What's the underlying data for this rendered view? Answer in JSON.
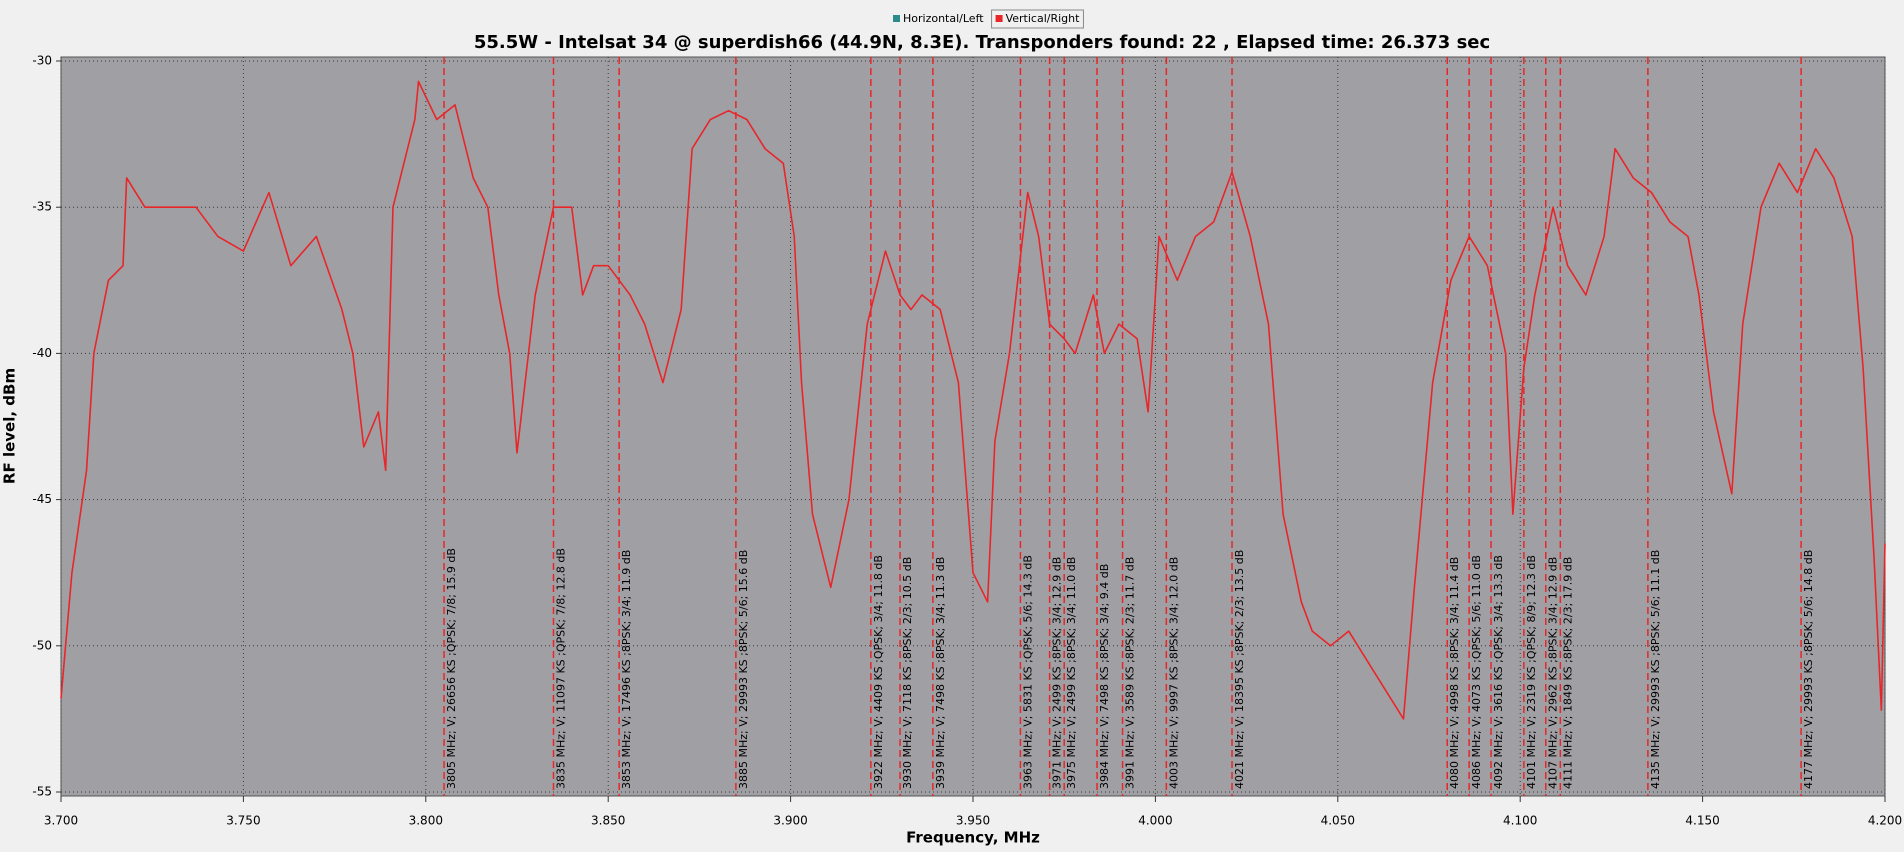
{
  "chart_data": {
    "type": "line",
    "title": "55.5W - Intelsat 34 @ superdish66 (44.9N, 8.3E). Transponders found: 22 , Elapsed time: 26.373 sec",
    "xlabel": "Frequency, MHz",
    "ylabel": "RF level, dBm",
    "xlim": [
      3.7,
      4.2
    ],
    "xticks": [
      {
        "value": 3.7,
        "label": "3.700"
      },
      {
        "value": 3.75,
        "label": "3.750"
      },
      {
        "value": 3.8,
        "label": "3.800"
      },
      {
        "value": 3.85,
        "label": "3.850"
      },
      {
        "value": 3.9,
        "label": "3.900"
      },
      {
        "value": 3.95,
        "label": "3.950"
      },
      {
        "value": 4.0,
        "label": "4.000"
      },
      {
        "value": 4.05,
        "label": "4.050"
      },
      {
        "value": 4.1,
        "label": "4.100"
      },
      {
        "value": 4.15,
        "label": "4.150"
      },
      {
        "value": 4.2,
        "label": "4.200"
      }
    ],
    "ylim": [
      -55,
      -30
    ],
    "yticks": [
      -30,
      -35,
      -40,
      -45,
      -50,
      -55
    ],
    "grid": true,
    "legend": "top",
    "x": [
      3.7,
      3.703,
      3.707,
      3.709,
      3.713,
      3.717,
      3.718,
      3.723,
      3.73,
      3.737,
      3.743,
      3.75,
      3.757,
      3.763,
      3.77,
      3.777,
      3.78,
      3.783,
      3.787,
      3.789,
      3.791,
      3.793,
      3.797,
      3.798,
      3.803,
      3.808,
      3.813,
      3.817,
      3.82,
      3.823,
      3.825,
      3.83,
      3.835,
      3.84,
      3.843,
      3.846,
      3.85,
      3.853,
      3.856,
      3.86,
      3.865,
      3.87,
      3.873,
      3.878,
      3.883,
      3.888,
      3.893,
      3.898,
      3.901,
      3.903,
      3.906,
      3.911,
      3.916,
      3.921,
      3.926,
      3.93,
      3.933,
      3.936,
      3.941,
      3.946,
      3.95,
      3.954,
      3.956,
      3.96,
      3.965,
      3.968,
      3.971,
      3.975,
      3.978,
      3.983,
      3.986,
      3.99,
      3.995,
      3.998,
      4.001,
      4.006,
      4.011,
      4.016,
      4.021,
      4.026,
      4.031,
      4.035,
      4.04,
      4.043,
      4.048,
      4.053,
      4.058,
      4.063,
      4.068,
      4.071,
      4.076,
      4.081,
      4.086,
      4.091,
      4.096,
      4.098,
      4.101,
      4.104,
      4.109,
      4.113,
      4.118,
      4.123,
      4.126,
      4.131,
      4.136,
      4.141,
      4.146,
      4.149,
      4.153,
      4.158,
      4.161,
      4.166,
      4.171,
      4.176,
      4.181,
      4.186,
      4.191,
      4.194,
      4.197,
      4.199,
      4.2
    ],
    "series": [
      {
        "name": "Horizontal/Left",
        "color": "#2e8b8b",
        "values": [
          null,
          null,
          null,
          null,
          null,
          null,
          null,
          null,
          null,
          null,
          null,
          null,
          null,
          null,
          null,
          null,
          null,
          null,
          null,
          null,
          null,
          null,
          null,
          null,
          null,
          null,
          null,
          null,
          null,
          null,
          null,
          null,
          null,
          null,
          null,
          null,
          null,
          null,
          null,
          null,
          null,
          null,
          null,
          null,
          null,
          null,
          null,
          null,
          null,
          null,
          null,
          null,
          null,
          null,
          null,
          null,
          null,
          null,
          null,
          null,
          null,
          null,
          null,
          null,
          null,
          null,
          null,
          null,
          null,
          null,
          null,
          null,
          null,
          null,
          null,
          null,
          null,
          null,
          null,
          null,
          null,
          null,
          null,
          null,
          null,
          null,
          null,
          null,
          null,
          null,
          null,
          null,
          null,
          null,
          null,
          null,
          null,
          null,
          null,
          null,
          null,
          null,
          null,
          null,
          null,
          null,
          null,
          null,
          null,
          null,
          null,
          null,
          null,
          null,
          null,
          null,
          null,
          null,
          null,
          null,
          null
        ]
      },
      {
        "name": "Vertical/Right",
        "color": "#e8262a",
        "values": [
          -51.8,
          -47.5,
          -44,
          -40,
          -37.5,
          -37,
          -34,
          -35,
          -35,
          -35,
          -36,
          -36.5,
          -34.5,
          -37,
          -36,
          -38.5,
          -40,
          -43.2,
          -42,
          -44,
          -35,
          -34,
          -32,
          -30.7,
          -32,
          -31.5,
          -34,
          -35,
          -38,
          -40,
          -43.4,
          -38,
          -35,
          -35,
          -38,
          -37,
          -37,
          -37.5,
          -38,
          -39,
          -41,
          -38.5,
          -33,
          -32,
          -31.7,
          -32,
          -33,
          -33.5,
          -36,
          -41,
          -45.5,
          -48,
          -45,
          -39,
          -36.5,
          -38,
          -38.5,
          -38,
          -38.5,
          -41,
          -47.5,
          -48.5,
          -43,
          -40,
          -34.5,
          -36,
          -39,
          -39.5,
          -40,
          -38,
          -40,
          -39,
          -39.5,
          -42,
          -36,
          -37.5,
          -36,
          -35.5,
          -33.8,
          -36,
          -39,
          -45.5,
          -48.5,
          -49.5,
          -50,
          -49.5,
          -50.5,
          -51.5,
          -52.5,
          -48,
          -41,
          -37.5,
          -36,
          -37,
          -40,
          -45.5,
          -40.5,
          -38,
          -35,
          -37,
          -38,
          -36,
          -33,
          -34,
          -34.5,
          -35.5,
          -36,
          -38,
          -42,
          -44.8,
          -39,
          -35,
          -33.5,
          -34.5,
          -33,
          -34,
          -36,
          -40.5,
          -47,
          -52.2,
          -46.5
        ]
      }
    ],
    "markers": [
      {
        "x": 3.805,
        "label": "3805 MHz; V; 26656 KS ;QPSK; 7/8; 15.9 dB"
      },
      {
        "x": 3.835,
        "label": "3835 MHz; V; 11097 KS ;QPSK; 7/8; 12.8 dB"
      },
      {
        "x": 3.853,
        "label": "3853 MHz; V; 17496 KS ;8PSK; 3/4; 11.9 dB"
      },
      {
        "x": 3.885,
        "label": "3885 MHz; V; 29993 KS ;8PSK; 5/6; 15.6 dB"
      },
      {
        "x": 3.922,
        "label": "3922 MHz; V; 4409 KS ;QPSK; 3/4; 11.8 dB"
      },
      {
        "x": 3.93,
        "label": "3930 MHz; V; 7118 KS ;8PSK; 2/3; 10.5 dB"
      },
      {
        "x": 3.939,
        "label": "3939 MHz; V; 7498 KS ;8PSK; 3/4; 11.3 dB"
      },
      {
        "x": 3.963,
        "label": "3963 MHz; V; 5831 KS ;QPSK; 5/6; 14.3 dB"
      },
      {
        "x": 3.971,
        "label": "3971 MHz; V; 2499 KS ;8PSK; 3/4; 12.9 dB"
      },
      {
        "x": 3.975,
        "label": "3975 MHz; V; 2499 KS ;8PSK; 3/4; 11.0 dB"
      },
      {
        "x": 3.984,
        "label": "3984 MHz; V; 7498 KS ;8PSK; 3/4; 9.4 dB"
      },
      {
        "x": 3.991,
        "label": "3991 MHz; V; 3589 KS ;8PSK; 2/3; 11.7 dB"
      },
      {
        "x": 4.003,
        "label": "4003 MHz; V; 9997 KS ;8PSK; 3/4; 12.0 dB"
      },
      {
        "x": 4.021,
        "label": "4021 MHz; V; 18395 KS ;8PSK; 2/3; 13.5 dB"
      },
      {
        "x": 4.08,
        "label": "4080 MHz; V; 4998 KS ;8PSK; 3/4; 11.4 dB"
      },
      {
        "x": 4.086,
        "label": "4086 MHz; V; 4073 KS ;QPSK; 5/6; 11.0 dB"
      },
      {
        "x": 4.092,
        "label": "4092 MHz; V; 3616 KS ;QPSK; 3/4; 13.3 dB"
      },
      {
        "x": 4.101,
        "label": "4101 MHz; V; 2319 KS ;QPSK; 8/9; 12.3 dB"
      },
      {
        "x": 4.107,
        "label": "4107 MHz; V; 2962 KS ;8PSK; 3/4; 12.9 dB"
      },
      {
        "x": 4.111,
        "label": "4111 MHz; V; 1849 KS ;8PSK; 2/3; 17.9 dB"
      },
      {
        "x": 4.135,
        "label": "4135 MHz; V; 29993 KS ;8PSK; 5/6; 11.1 dB"
      },
      {
        "x": 4.177,
        "label": "4177 MHz; V; 29993 KS ;8PSK; 5/6; 14.8 dB"
      }
    ]
  }
}
